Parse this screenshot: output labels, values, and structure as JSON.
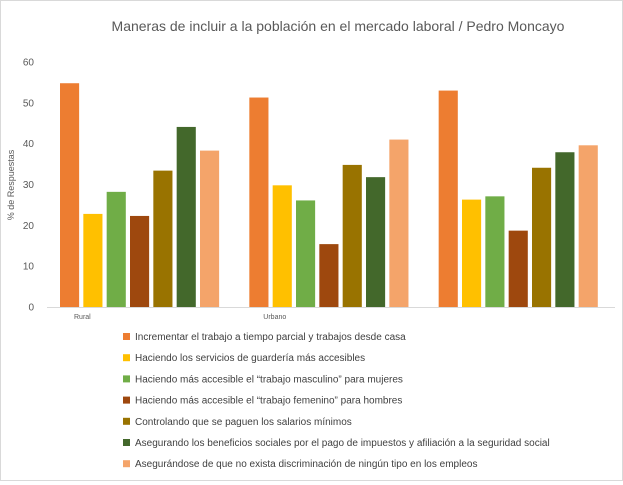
{
  "chart_data": {
    "type": "bar",
    "title": "Maneras de incluir a la población en el mercado laboral / Pedro Moncayo",
    "ylabel": "% de Respuestas",
    "xlabel": "",
    "ylim": [
      0,
      60
    ],
    "yticks": [
      0,
      10,
      20,
      30,
      40,
      50,
      60
    ],
    "grid": false,
    "legend": "bottom",
    "categories": [
      "Rural",
      "Urbano",
      ""
    ],
    "series": [
      {
        "name": "Incrementar el trabajo a tiempo parcial y trabajos desde casa",
        "color": "#ED7D31",
        "values": [
          54.8,
          51.3,
          53.0
        ]
      },
      {
        "name": "Haciendo los servicios de guardería más accesibles",
        "color": "#FFC000",
        "values": [
          22.8,
          29.8,
          26.3
        ]
      },
      {
        "name": "Haciendo más accesible el “trabajo masculino” para mujeres",
        "color": "#70AD47",
        "values": [
          28.2,
          26.1,
          27.1
        ]
      },
      {
        "name": "Haciendo más accesible el “trabajo femenino” para hombres",
        "color": "#9E480E",
        "values": [
          22.3,
          15.4,
          18.7
        ]
      },
      {
        "name": "Controlando que se paguen los salarios mínimos",
        "color": "#997300",
        "values": [
          33.4,
          34.8,
          34.1
        ]
      },
      {
        "name": "Asegurando los beneficios sociales por el pago de impuestos y afiliación a la seguridad social",
        "color": "#43682B",
        "values": [
          44.1,
          31.8,
          37.9
        ]
      },
      {
        "name": "Asegurándose de que no exista discriminación de ningún tipo en los empleos",
        "color": "#F4A46A",
        "values": [
          38.3,
          41.0,
          39.6
        ]
      }
    ]
  }
}
